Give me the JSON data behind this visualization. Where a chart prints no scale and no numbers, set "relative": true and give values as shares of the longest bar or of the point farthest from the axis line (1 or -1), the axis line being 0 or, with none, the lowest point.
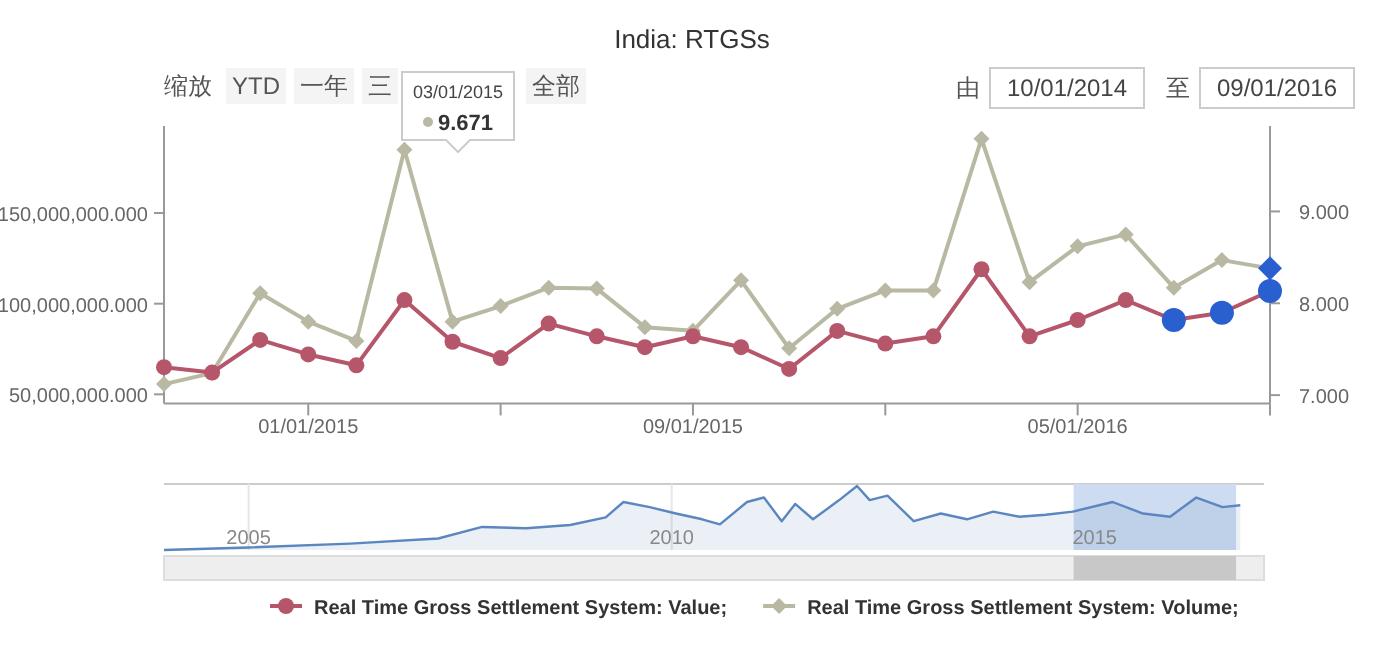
{
  "chart_data": [
    {
      "type": "line",
      "title": "India: RTGSs",
      "x": [
        "2014-10",
        "2014-11",
        "2014-12",
        "2015-01",
        "2015-02",
        "2015-03",
        "2015-04",
        "2015-05",
        "2015-06",
        "2015-07",
        "2015-08",
        "2015-09",
        "2015-10",
        "2015-11",
        "2015-12",
        "2016-01",
        "2016-02",
        "2016-03",
        "2016-04",
        "2016-05",
        "2016-06",
        "2016-07",
        "2016-08",
        "2016-09"
      ],
      "series": [
        {
          "name": "Real Time Gross Settlement System: Value;",
          "color": "#b5566b",
          "marker": "circle",
          "values": [
            65000000,
            62000000,
            80000000,
            72000000,
            66000000,
            102000000,
            79000000,
            70000000,
            89000000,
            82000000,
            76000000,
            82000000,
            76000000,
            64000000,
            85000000,
            78000000,
            82000000,
            119000000,
            82000000,
            91000000,
            102000000,
            91000000,
            95000000,
            107000000
          ],
          "colors": [
            "#b5566b",
            "#b5566b",
            "#b5566b",
            "#b5566b",
            "#b5566b",
            "#b5566b",
            "#b5566b",
            "#b5566b",
            "#b5566b",
            "#b5566b",
            "#b5566b",
            "#b5566b",
            "#b5566b",
            "#b5566b",
            "#b5566b",
            "#b5566b",
            "#b5566b",
            "#b5566b",
            "#b5566b",
            "#b5566b",
            "#b5566b",
            "#2a5fd0",
            "#2a5fd0",
            "#2a5fd0"
          ]
        },
        {
          "name": "Real Time Gross Settlement System: Volume;",
          "color": "#b9b8a2",
          "marker": "diamond",
          "axis": "y2",
          "values": [
            7.12,
            7.24,
            8.11,
            7.8,
            7.59,
            9.671,
            7.8,
            7.97,
            8.17,
            8.16,
            7.74,
            7.7,
            8.25,
            7.51,
            7.94,
            8.14,
            8.14,
            9.79,
            8.23,
            8.62,
            8.75,
            8.17,
            8.47,
            8.38
          ],
          "colors": [
            "#b9b8a2",
            "#b9b8a2",
            "#b9b8a2",
            "#b9b8a2",
            "#b9b8a2",
            "#b9b8a2",
            "#b9b8a2",
            "#b9b8a2",
            "#b9b8a2",
            "#b9b8a2",
            "#b9b8a2",
            "#b9b8a2",
            "#b9b8a2",
            "#b9b8a2",
            "#b9b8a2",
            "#b9b8a2",
            "#b9b8a2",
            "#b9b8a2",
            "#b9b8a2",
            "#b9b8a2",
            "#b9b8a2",
            "#b9b8a2",
            "#b9b8a2",
            "#2a5fd0"
          ]
        }
      ],
      "xlim": [
        "2014-10",
        "2016-09"
      ],
      "xticks": [
        {
          "value": "2015-01",
          "label": "01/01/2015"
        },
        {
          "value": "2015-05",
          "label": null
        },
        {
          "value": "2015-09",
          "label": "09/01/2015"
        },
        {
          "value": "2016-01",
          "label": null
        },
        {
          "value": "2016-05",
          "label": "05/01/2016"
        },
        {
          "value": "2016-09",
          "label": null
        }
      ],
      "ylim": [
        45000000,
        198000000
      ],
      "yticks": [
        {
          "value": 50000000,
          "label": "50,000,000.000"
        },
        {
          "value": 100000000,
          "label": "100,000,000.000"
        },
        {
          "value": 150000000,
          "label": "150,000,000.000"
        }
      ],
      "y2lim": [
        6.91,
        9.93
      ],
      "y2ticks": [
        {
          "value": 7,
          "label": "7.000"
        },
        {
          "value": 8,
          "label": "8.000"
        },
        {
          "value": 9,
          "label": "9.000"
        }
      ],
      "legend": "bottom",
      "annotations": [
        "缩放",
        "YTD",
        "一年",
        "三",
        "全部",
        "由",
        "10/01/2014",
        "至",
        "09/01/2016",
        "03/01/2015",
        "9.671"
      ]
    },
    {
      "type": "area",
      "relative": true,
      "color": "#5b86c0",
      "x": [
        2004.0,
        2005.0,
        2006.2,
        2007.24,
        2007.76,
        2008.28,
        2008.8,
        2009.22,
        2009.43,
        2009.74,
        2010.05,
        2010.36,
        2010.57,
        2010.89,
        2011.09,
        2011.3,
        2011.46,
        2011.67,
        2011.98,
        2012.19,
        2012.34,
        2012.55,
        2012.86,
        2013.18,
        2013.49,
        2013.8,
        2014.11,
        2014.42,
        2014.74,
        2015.21,
        2015.57,
        2015.89,
        2016.2,
        2016.51,
        2016.72
      ],
      "values": [
        0,
        0.04,
        0.1,
        0.18,
        0.36,
        0.34,
        0.39,
        0.51,
        0.75,
        0.67,
        0.57,
        0.48,
        0.4,
        0.75,
        0.82,
        0.45,
        0.72,
        0.48,
        0.78,
        1.0,
        0.78,
        0.85,
        0.45,
        0.57,
        0.48,
        0.6,
        0.52,
        0.55,
        0.6,
        0.75,
        0.57,
        0.52,
        0.82,
        0.67,
        0.7
      ],
      "xlim": [
        2004,
        2017
      ],
      "xticks": [
        2005,
        2010,
        2015
      ],
      "grid": "x",
      "tick_labels": "x",
      "bands": [
        {
          "axis": "x",
          "from": 2014.75,
          "to": 2016.67,
          "color": "#cddcf0"
        }
      ]
    }
  ]
}
